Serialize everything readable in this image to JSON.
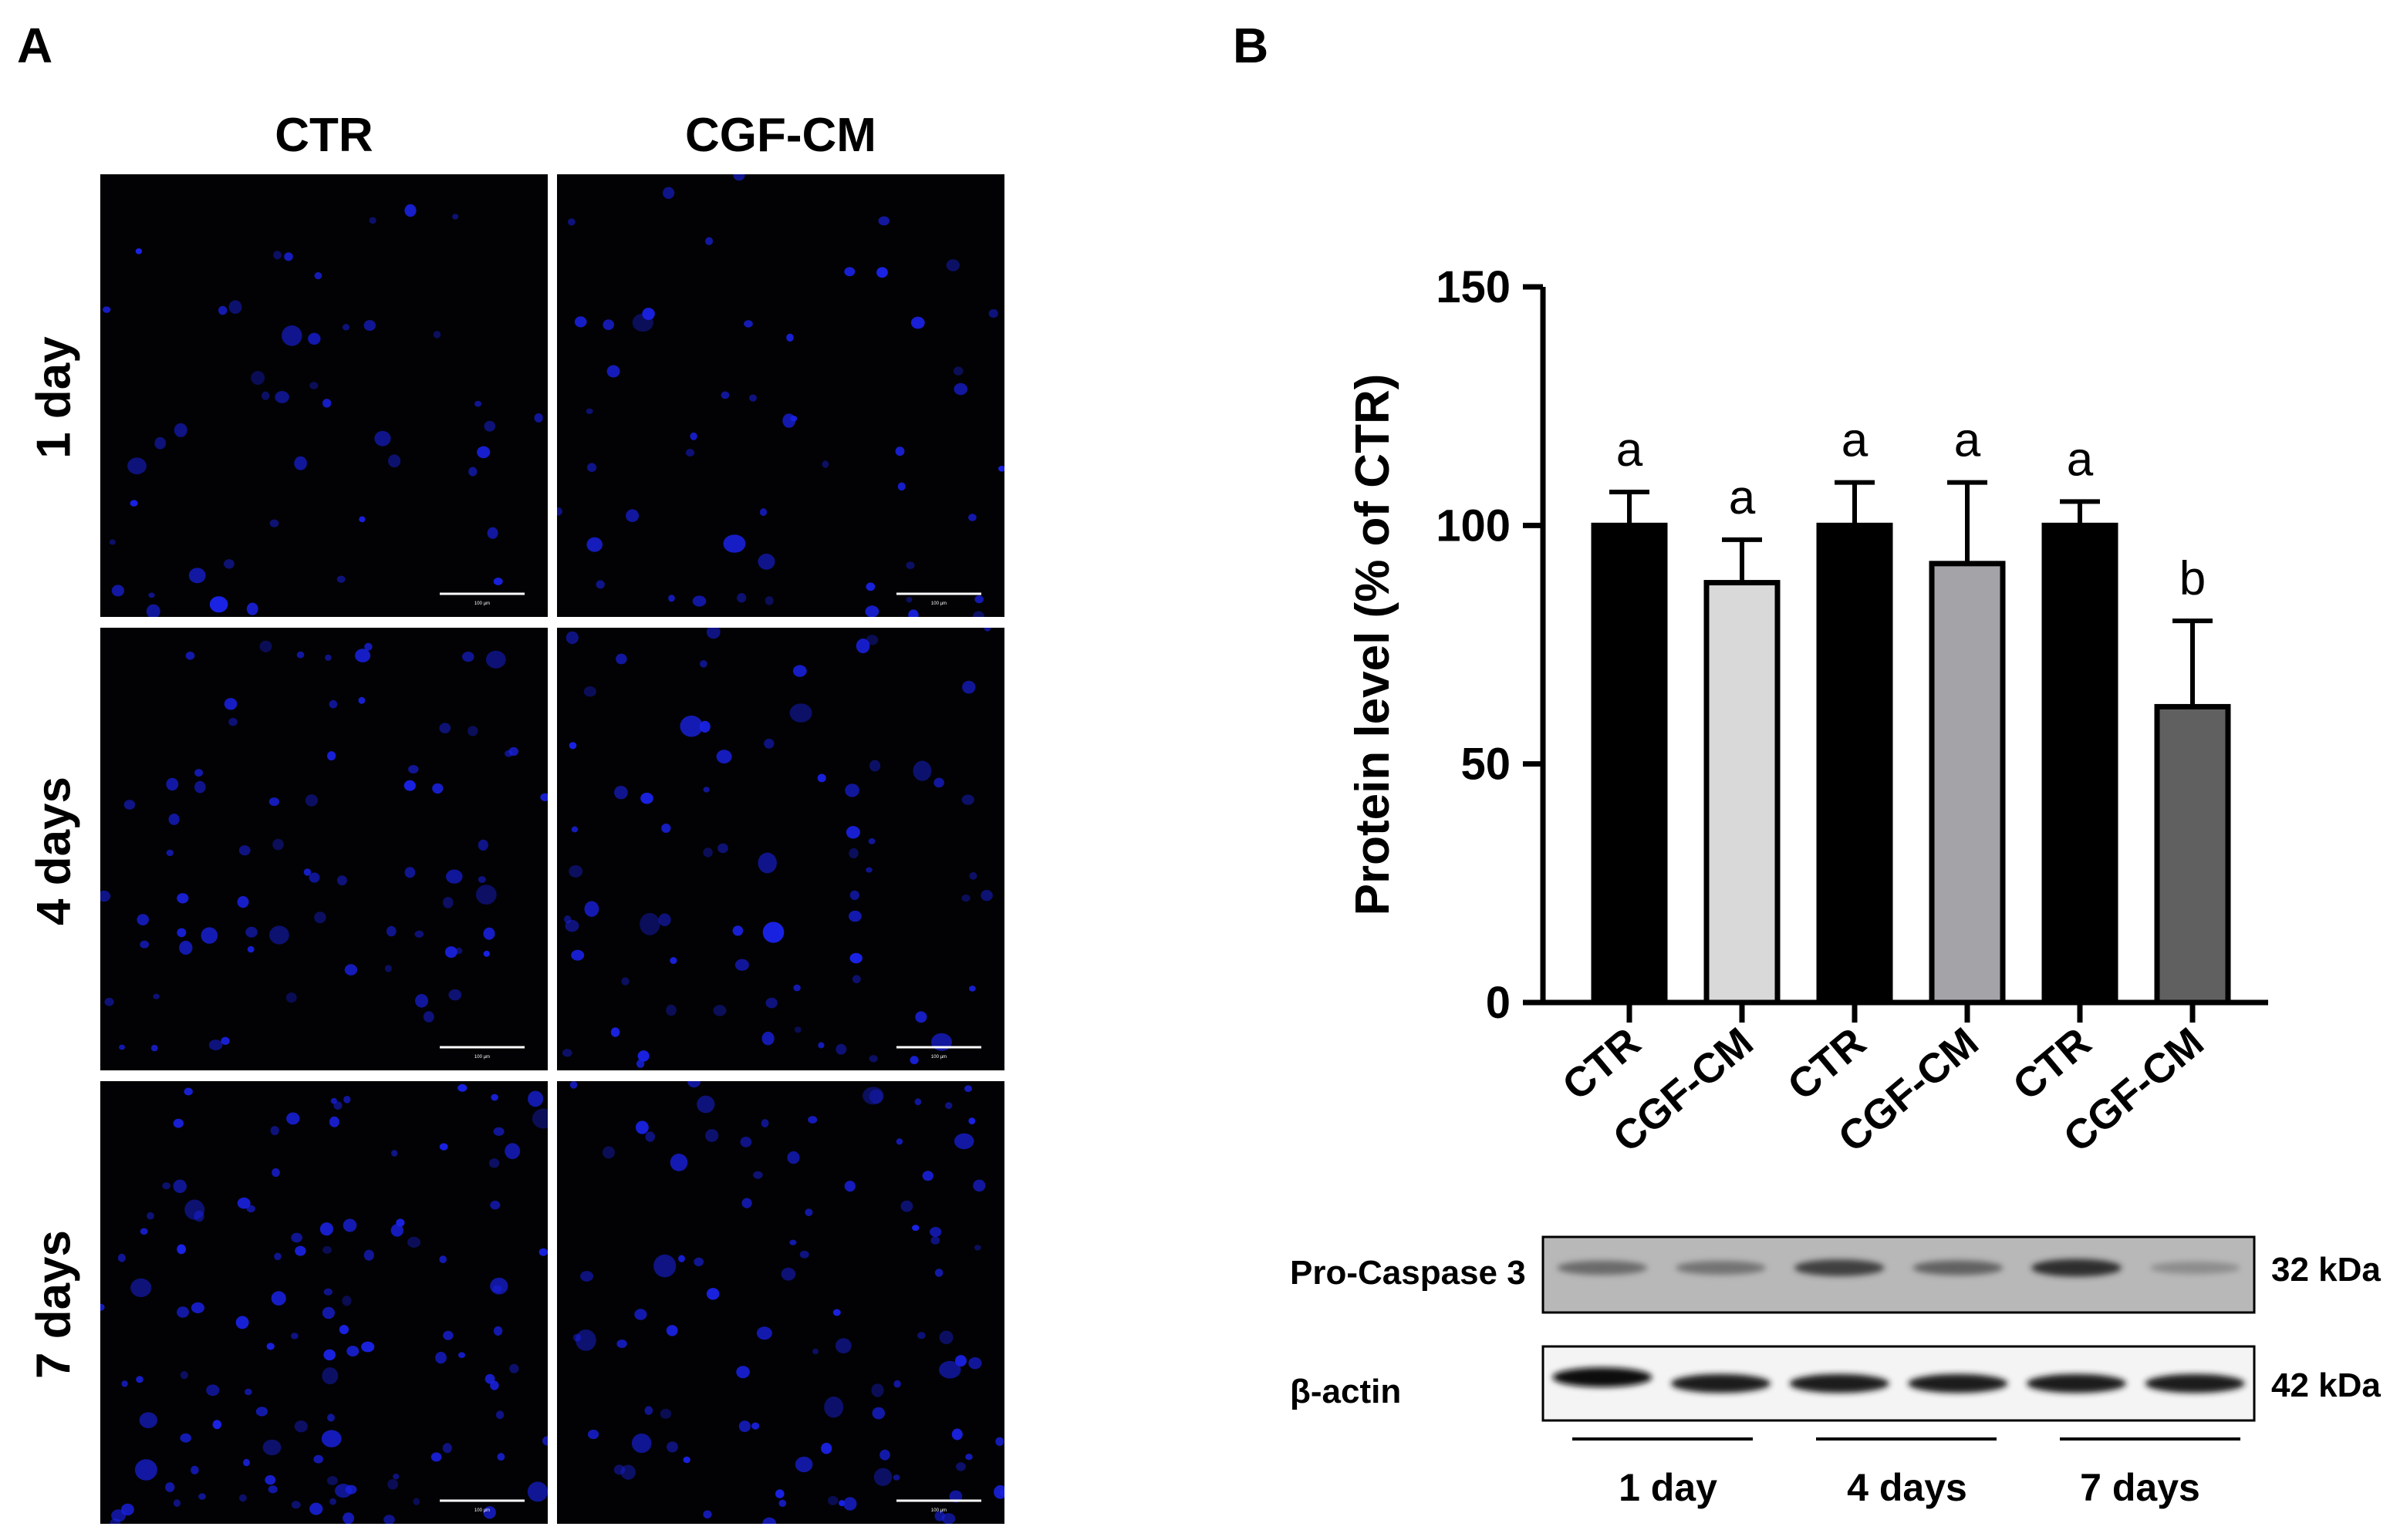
{
  "panel_a": {
    "letter": "A",
    "columns": [
      "CTR",
      "CGF-CM"
    ],
    "rows": [
      "1 day",
      "4 days",
      "7 days"
    ],
    "scale_bar_label": "100 µm",
    "nucleus_color": "#1a22e6",
    "background_color": "#020204"
  },
  "panel_b": {
    "letter": "B"
  },
  "chart_data": {
    "type": "bar",
    "categories": [
      "CTR",
      "CGF-CM",
      "CTR",
      "CGF-CM",
      "CTR",
      "CGF-CM"
    ],
    "values": [
      100,
      88,
      100,
      92,
      100,
      62
    ],
    "errors": [
      7,
      9,
      9,
      17,
      5,
      18
    ],
    "significance": [
      "a",
      "a",
      "a",
      "a",
      "a",
      "b"
    ],
    "bar_colors": [
      "#000000",
      "#d9d9d9",
      "#000000",
      "#a3a3a8",
      "#000000",
      "#606060"
    ],
    "ylabel": "Protein level (% of CTR)",
    "ylim": [
      0,
      150
    ],
    "yticks": [
      0,
      50,
      100,
      150
    ],
    "grid": false,
    "legend": "none"
  },
  "western_blot": {
    "bands": [
      {
        "label": "Pro-Caspase 3",
        "size": "32 kDa",
        "intensities": [
          0.55,
          0.5,
          0.8,
          0.6,
          0.9,
          0.35
        ]
      },
      {
        "label": "β-actin",
        "size": "42 kDa",
        "intensities": [
          0.95,
          0.85,
          0.85,
          0.85,
          0.85,
          0.85
        ]
      }
    ],
    "groups": [
      "1 day",
      "4 days",
      "7 days"
    ]
  }
}
